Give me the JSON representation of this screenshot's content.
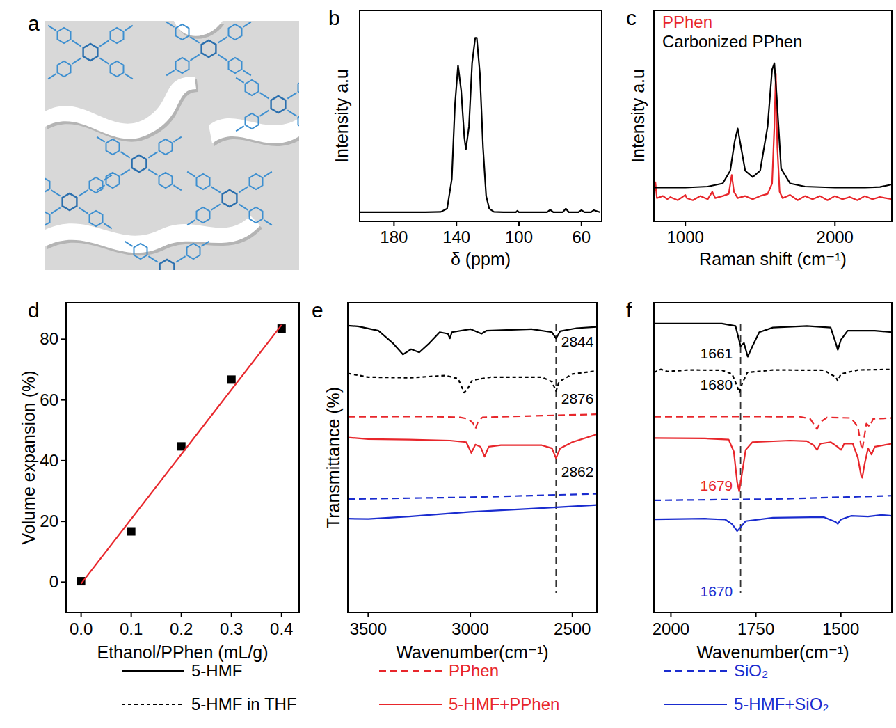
{
  "chart_data": [
    {
      "panel": "a",
      "type": "diagram"
    },
    {
      "panel": "b",
      "type": "line",
      "x_label": "δ (ppm)",
      "y_label": "Intensity a.u",
      "xlim": [
        202,
        47
      ],
      "ylim": [
        0,
        100
      ],
      "xticks": [
        180,
        140,
        100,
        60
      ],
      "tick_labels": "x",
      "series": [
        {
          "color": "#000000",
          "line_style": "solid",
          "x": [
            202,
            180,
            160,
            150,
            146,
            143,
            141,
            139,
            137,
            135,
            134,
            132,
            130,
            128,
            127,
            125,
            123,
            121,
            119,
            116,
            110,
            102,
            101,
            100,
            82,
            80,
            78,
            72,
            70,
            68,
            62,
            60,
            58,
            54,
            52,
            48
          ],
          "values": [
            4.3,
            4.3,
            4.3,
            4.5,
            6,
            20,
            55,
            74,
            62,
            40,
            34,
            45,
            75,
            87,
            87,
            70,
            35,
            12,
            6,
            4.5,
            4.3,
            4.3,
            5,
            4.3,
            4.3,
            5.5,
            4.3,
            4.3,
            6,
            4.3,
            4.3,
            5.3,
            4.3,
            4.3,
            5.3,
            4.3
          ]
        }
      ]
    },
    {
      "panel": "c",
      "type": "line",
      "x_label": "Raman shift (cm⁻¹)",
      "y_label": "Intensity a.u",
      "xlim": [
        790,
        2380
      ],
      "ylim": [
        0,
        100
      ],
      "xticks": [
        1000,
        2000
      ],
      "tick_labels": "x",
      "legend": "upper left",
      "series": [
        {
          "name": "PPhen",
          "color": "#e8262b",
          "line_style": "solid",
          "x": [
            790,
            800,
            810,
            850,
            880,
            900,
            950,
            1000,
            1010,
            1050,
            1100,
            1150,
            1180,
            1200,
            1250,
            1290,
            1310,
            1325,
            1350,
            1400,
            1450,
            1500,
            1550,
            1580,
            1595,
            1605,
            1615,
            1630,
            1650,
            1700,
            1750,
            1800,
            1850,
            1900,
            1950,
            2000,
            2050,
            2100,
            2150,
            2200,
            2250,
            2300,
            2380
          ],
          "values": [
            11,
            18.5,
            11,
            12,
            10.5,
            11.5,
            10,
            12.5,
            11,
            10,
            12,
            10.5,
            14,
            11,
            12,
            13,
            22,
            14,
            11,
            12,
            10.5,
            12,
            13,
            18,
            45,
            70,
            35,
            14,
            11,
            12.5,
            10,
            12,
            10.5,
            12,
            10,
            12,
            10.5,
            11.5,
            10,
            12,
            10.5,
            11.5,
            10.5
          ]
        },
        {
          "name": "Carbonized PPhen",
          "color": "#000000",
          "line_style": "solid",
          "x": [
            790,
            1000,
            1150,
            1250,
            1300,
            1330,
            1350,
            1370,
            1400,
            1450,
            1500,
            1550,
            1580,
            1595,
            1610,
            1640,
            1700,
            1800,
            2000,
            2200,
            2300,
            2380
          ],
          "values": [
            16,
            16,
            16.5,
            18,
            24,
            38,
            44,
            36,
            24,
            21,
            24,
            45,
            72,
            75,
            60,
            25,
            18,
            16.5,
            16,
            16,
            16.3,
            17.5
          ]
        }
      ]
    },
    {
      "panel": "d",
      "type": "scatter",
      "x_label": "Ethanol/PPhen (mL/g)",
      "y_label": "Volume expansion (%)",
      "xlim": [
        -0.03,
        0.435
      ],
      "ylim": [
        -10,
        92
      ],
      "xticks": [
        {
          "value": 0,
          "label": "0.0"
        },
        0.1,
        0.2,
        0.3,
        0.4
      ],
      "yticks": [
        0,
        20,
        40,
        60,
        80
      ],
      "series": [
        {
          "type": "scatter",
          "marker": "square",
          "color": "#000000",
          "x": [
            0,
            0.1,
            0.2,
            0.3,
            0.4
          ],
          "values": [
            0.3,
            16.7,
            44.7,
            66.7,
            83.5
          ]
        },
        {
          "type": "line",
          "line_style": "solid",
          "color": "#e8262b",
          "x": [
            0,
            0.4
          ],
          "values": [
            -0.5,
            84.7
          ]
        }
      ]
    },
    {
      "panel": "e",
      "type": "line",
      "x_label": "Wavenumber(cm⁻¹)",
      "y_label": "Transmittance (%)",
      "xlim": [
        3600,
        2380
      ],
      "ylim": [
        0,
        100
      ],
      "xticks": [
        3500,
        3000,
        2500
      ],
      "tick_labels": "x",
      "legend": "bottom",
      "series": [
        {
          "name": "5-HMF",
          "color": "#000000",
          "line_style": "solid",
          "x": [
            3600,
            3550,
            3450,
            3380,
            3330,
            3290,
            3250,
            3200,
            3150,
            3110,
            3100,
            3090,
            3000,
            2945,
            2920,
            2700,
            2600,
            2580,
            2560,
            2480,
            2380
          ],
          "values": [
            92.6,
            92.4,
            91,
            87,
            83.3,
            85,
            84,
            87,
            90.5,
            90,
            88.5,
            90.5,
            91.5,
            90,
            91,
            91.5,
            90.5,
            88.5,
            90.8,
            91.8,
            92.2
          ]
        },
        {
          "name": "5-HMF in THF",
          "color": "#000000",
          "line_style": "dotted",
          "x": [
            3600,
            3500,
            3300,
            3120,
            3060,
            3030,
            3015,
            2990,
            2900,
            2650,
            2600,
            2580,
            2565,
            2500,
            2380
          ],
          "values": [
            77.2,
            76,
            75.8,
            76.5,
            75.5,
            71,
            72,
            75,
            76,
            76,
            74.5,
            71.5,
            74.5,
            77,
            78
          ]
        },
        {
          "name": "PPhen",
          "color": "#e8262b",
          "line_style": "dashed",
          "x": [
            3600,
            3200,
            3050,
            3010,
            2985,
            2975,
            2960,
            2940,
            2800,
            2380
          ],
          "values": [
            63.2,
            63.3,
            63,
            62.5,
            61,
            59.3,
            62,
            63,
            63.3,
            64
          ]
        },
        {
          "name": "5-HMF+PPhen",
          "color": "#e8262b",
          "line_style": "solid",
          "x": [
            3600,
            3500,
            3300,
            3100,
            3020,
            2995,
            2975,
            2950,
            2930,
            2910,
            2850,
            2650,
            2600,
            2580,
            2560,
            2500,
            2380
          ],
          "values": [
            56.5,
            56,
            55.8,
            55.5,
            55,
            51.5,
            54.2,
            53.5,
            50.3,
            53.5,
            54,
            54,
            53,
            49.8,
            53,
            55,
            57.5
          ]
        },
        {
          "name": "SiO₂",
          "color": "#1a2ccf",
          "line_style": "dashed",
          "x": [
            3600,
            3000,
            2380
          ],
          "values": [
            36.6,
            37.2,
            38.3
          ]
        },
        {
          "name": "5-HMF+SiO₂",
          "color": "#1a2ccf",
          "line_style": "solid",
          "x": [
            3600,
            3500,
            3300,
            3000,
            2700,
            2380
          ],
          "values": [
            30.3,
            30.2,
            31,
            32.5,
            33.5,
            34.7
          ]
        }
      ],
      "vline": {
        "x": 2580,
        "line_style": "dashed"
      },
      "annotations": [
        {
          "text": "2844",
          "x": 2475,
          "y": 87.5,
          "color": "#000000"
        },
        {
          "text": "2876",
          "x": 2475,
          "y": 69,
          "color": "#000000"
        },
        {
          "text": "2862",
          "x": 2475,
          "y": 45.5,
          "color": "#000000"
        }
      ]
    },
    {
      "panel": "f",
      "type": "line",
      "x_label": "Wavenumber(cm⁻¹)",
      "xlim": [
        2050,
        1350
      ],
      "ylim": [
        0,
        100
      ],
      "xticks": [
        2000,
        1750,
        1500
      ],
      "tick_labels": "x",
      "series": [
        {
          "color": "#000000",
          "line_style": "solid",
          "x": [
            2050,
            1850,
            1810,
            1795,
            1785,
            1774,
            1760,
            1740,
            1700,
            1600,
            1530,
            1515,
            1509,
            1500,
            1480,
            1400,
            1350
          ],
          "values": [
            93.3,
            93.3,
            92.5,
            86,
            87,
            82.6,
            86,
            90.5,
            92,
            92.5,
            92,
            87,
            84.8,
            88,
            91,
            91,
            90.5
          ]
        },
        {
          "color": "#000000",
          "line_style": "dotted",
          "x": [
            2050,
            2030,
            2010,
            1950,
            1850,
            1820,
            1805,
            1799,
            1790,
            1775,
            1700,
            1550,
            1515,
            1509,
            1500,
            1450,
            1350
          ],
          "values": [
            77.5,
            78.5,
            77.8,
            78.3,
            78.2,
            77,
            73,
            71,
            74,
            77.5,
            78.3,
            78.2,
            76,
            74.8,
            77,
            78.3,
            78.5
          ]
        },
        {
          "color": "#e8262b",
          "line_style": "dashed",
          "x": [
            2050,
            1800,
            1620,
            1590,
            1575,
            1570,
            1560,
            1540,
            1470,
            1450,
            1440,
            1437,
            1432,
            1425,
            1415,
            1405,
            1350
          ],
          "values": [
            63.2,
            63.3,
            63.2,
            62.5,
            60,
            59.2,
            61.5,
            63,
            62.8,
            60,
            53.5,
            52.5,
            56,
            61,
            60,
            62.5,
            62.8
          ]
        },
        {
          "color": "#e8262b",
          "line_style": "solid",
          "x": [
            2050,
            1900,
            1830,
            1815,
            1805,
            1799,
            1792,
            1780,
            1760,
            1650,
            1600,
            1580,
            1570,
            1560,
            1530,
            1510,
            1499,
            1490,
            1465,
            1450,
            1440,
            1437,
            1430,
            1420,
            1410,
            1400,
            1350
          ],
          "values": [
            56.3,
            56.2,
            55.8,
            52,
            42,
            39.1,
            44,
            52.5,
            55,
            55.5,
            55.3,
            54,
            52.5,
            54.5,
            55,
            53.5,
            52.5,
            54.5,
            54.5,
            50,
            44,
            43.5,
            48,
            53,
            51,
            53.5,
            54.5
          ]
        },
        {
          "color": "#1a2ccf",
          "line_style": "dashed",
          "x": [
            2050,
            1700,
            1350
          ],
          "values": [
            36.2,
            36.6,
            37.7
          ]
        },
        {
          "color": "#1a2ccf",
          "line_style": "solid",
          "x": [
            2050,
            1900,
            1840,
            1820,
            1805,
            1795,
            1780,
            1700,
            1550,
            1515,
            1509,
            1500,
            1470,
            1420,
            1380,
            1350
          ],
          "values": [
            30.1,
            30.3,
            30,
            28.5,
            26.3,
            27.5,
            29.5,
            30.6,
            30.8,
            29.2,
            28.6,
            30,
            31.2,
            31,
            31.5,
            31.2
          ]
        }
      ],
      "vline": {
        "x": 1795,
        "line_style": "dashed"
      },
      "annotations": [
        {
          "text": "1661",
          "x": 1866,
          "y": 83.5,
          "color": "#000000"
        },
        {
          "text": "1680",
          "x": 1866,
          "y": 73.5,
          "color": "#000000"
        },
        {
          "text": "1679",
          "x": 1866,
          "y": 41,
          "color": "#e8262b"
        },
        {
          "text": "1670",
          "x": 1866,
          "y": 6.7,
          "color": "#1a2ccf"
        }
      ]
    }
  ]
}
